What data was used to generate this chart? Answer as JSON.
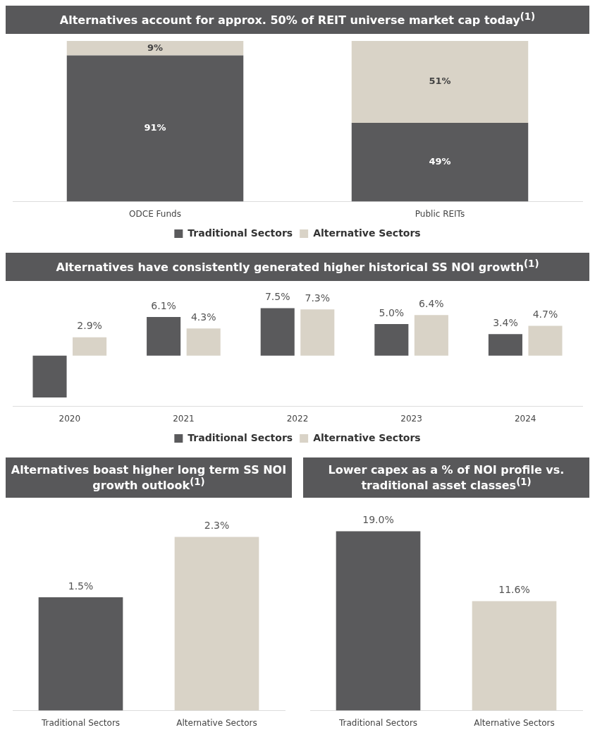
{
  "chart_data": [
    {
      "type": "bar",
      "title": "Alternatives account for approx. 50% of REIT universe market cap today$^{(1)}$",
      "categories": [
        "ODCE Funds",
        "Public REITs"
      ],
      "stacked": true,
      "legend": "bottom",
      "series": [
        {
          "name": "Traditional Sectors",
          "color": "#5a5a5c",
          "values": [
            91,
            49
          ],
          "value_labels": [
            "91%",
            "49%"
          ]
        },
        {
          "name": "Alternative Sectors",
          "color": "#d9d3c7",
          "values": [
            9,
            51
          ],
          "value_labels": [
            "9%",
            "51%"
          ]
        }
      ]
    },
    {
      "type": "bar",
      "title": "Alternatives have consistently generated higher historical SS NOI growth$^{(1)}$",
      "categories": [
        "2020",
        "2021",
        "2022",
        "2023",
        "2024"
      ],
      "legend": "bottom",
      "series": [
        {
          "name": "Traditional Sectors",
          "color": "#5a5a5c",
          "values": [
            -6.6,
            6.1,
            7.5,
            5.0,
            3.4
          ],
          "value_labels": [
            null,
            "6.1%",
            "7.5%",
            "5.0%",
            "3.4%"
          ]
        },
        {
          "name": "Alternative Sectors",
          "color": "#d9d3c7",
          "values": [
            2.9,
            4.3,
            7.3,
            6.4,
            4.7
          ],
          "value_labels": [
            "2.9%",
            "4.3%",
            "7.3%",
            "6.4%",
            "4.7%"
          ]
        }
      ]
    },
    {
      "type": "bar",
      "title": "Alternatives boast higher long term SS NOI growth outlook$^{(1)}$",
      "categories": [
        "Traditional Sectors",
        "Alternative Sectors"
      ],
      "values": [
        1.5,
        2.3
      ],
      "value_labels": [
        "1.5%",
        "2.3%"
      ],
      "colors": [
        "#5a5a5c",
        "#d9d3c7"
      ]
    },
    {
      "type": "bar",
      "title": "Lower capex as a % of NOI profile vs. traditional asset classes$^{(1)}$",
      "categories": [
        "Traditional Sectors",
        "Alternative Sectors"
      ],
      "values": [
        19.0,
        11.6
      ],
      "value_labels": [
        "19.0%",
        "11.6%"
      ],
      "colors": [
        "#5a5a5c",
        "#d9d3c7"
      ]
    }
  ]
}
